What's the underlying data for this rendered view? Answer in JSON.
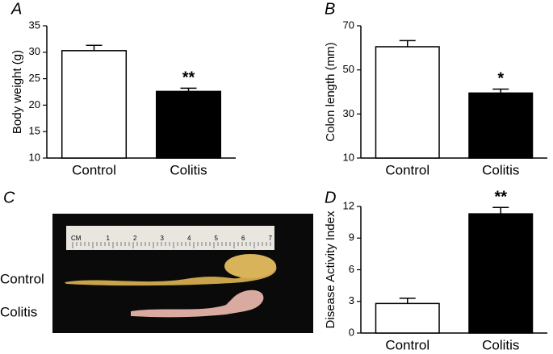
{
  "chart_data": [
    {
      "type": "bar",
      "panel": "A",
      "y_label": "Body weight (g)",
      "categories": [
        "Control",
        "Colitis"
      ],
      "values": [
        30.3,
        22.6
      ],
      "errors": [
        1.0,
        0.6
      ],
      "colors": [
        "#ffffff",
        "#000000"
      ],
      "annotations": [
        null,
        "**"
      ],
      "ylim": [
        10,
        35
      ],
      "yticks": [
        10,
        15,
        20,
        25,
        30,
        35
      ]
    },
    {
      "type": "bar",
      "panel": "B",
      "y_label": "Colon length (mm)",
      "categories": [
        "Control",
        "Colitis"
      ],
      "values": [
        60.5,
        39.5
      ],
      "errors": [
        2.8,
        1.8
      ],
      "colors": [
        "#ffffff",
        "#000000"
      ],
      "annotations": [
        null,
        "*"
      ],
      "ylim": [
        10,
        70
      ],
      "yticks": [
        10,
        30,
        50,
        70
      ]
    },
    {
      "type": "bar",
      "panel": "D",
      "y_label": "Disease Activity Index",
      "categories": [
        "Control",
        "Colitis"
      ],
      "values": [
        2.8,
        11.3
      ],
      "errors": [
        0.5,
        0.6
      ],
      "colors": [
        "#ffffff",
        "#000000"
      ],
      "annotations": [
        null,
        "**"
      ],
      "ylim": [
        0,
        12
      ],
      "yticks": [
        0,
        3,
        6,
        9,
        12
      ]
    }
  ],
  "photo": {
    "panel": "C",
    "labels": [
      "Control",
      "Colitis"
    ],
    "ruler": [
      "CM",
      "1",
      "2",
      "3",
      "4",
      "5",
      "6",
      "7"
    ]
  }
}
